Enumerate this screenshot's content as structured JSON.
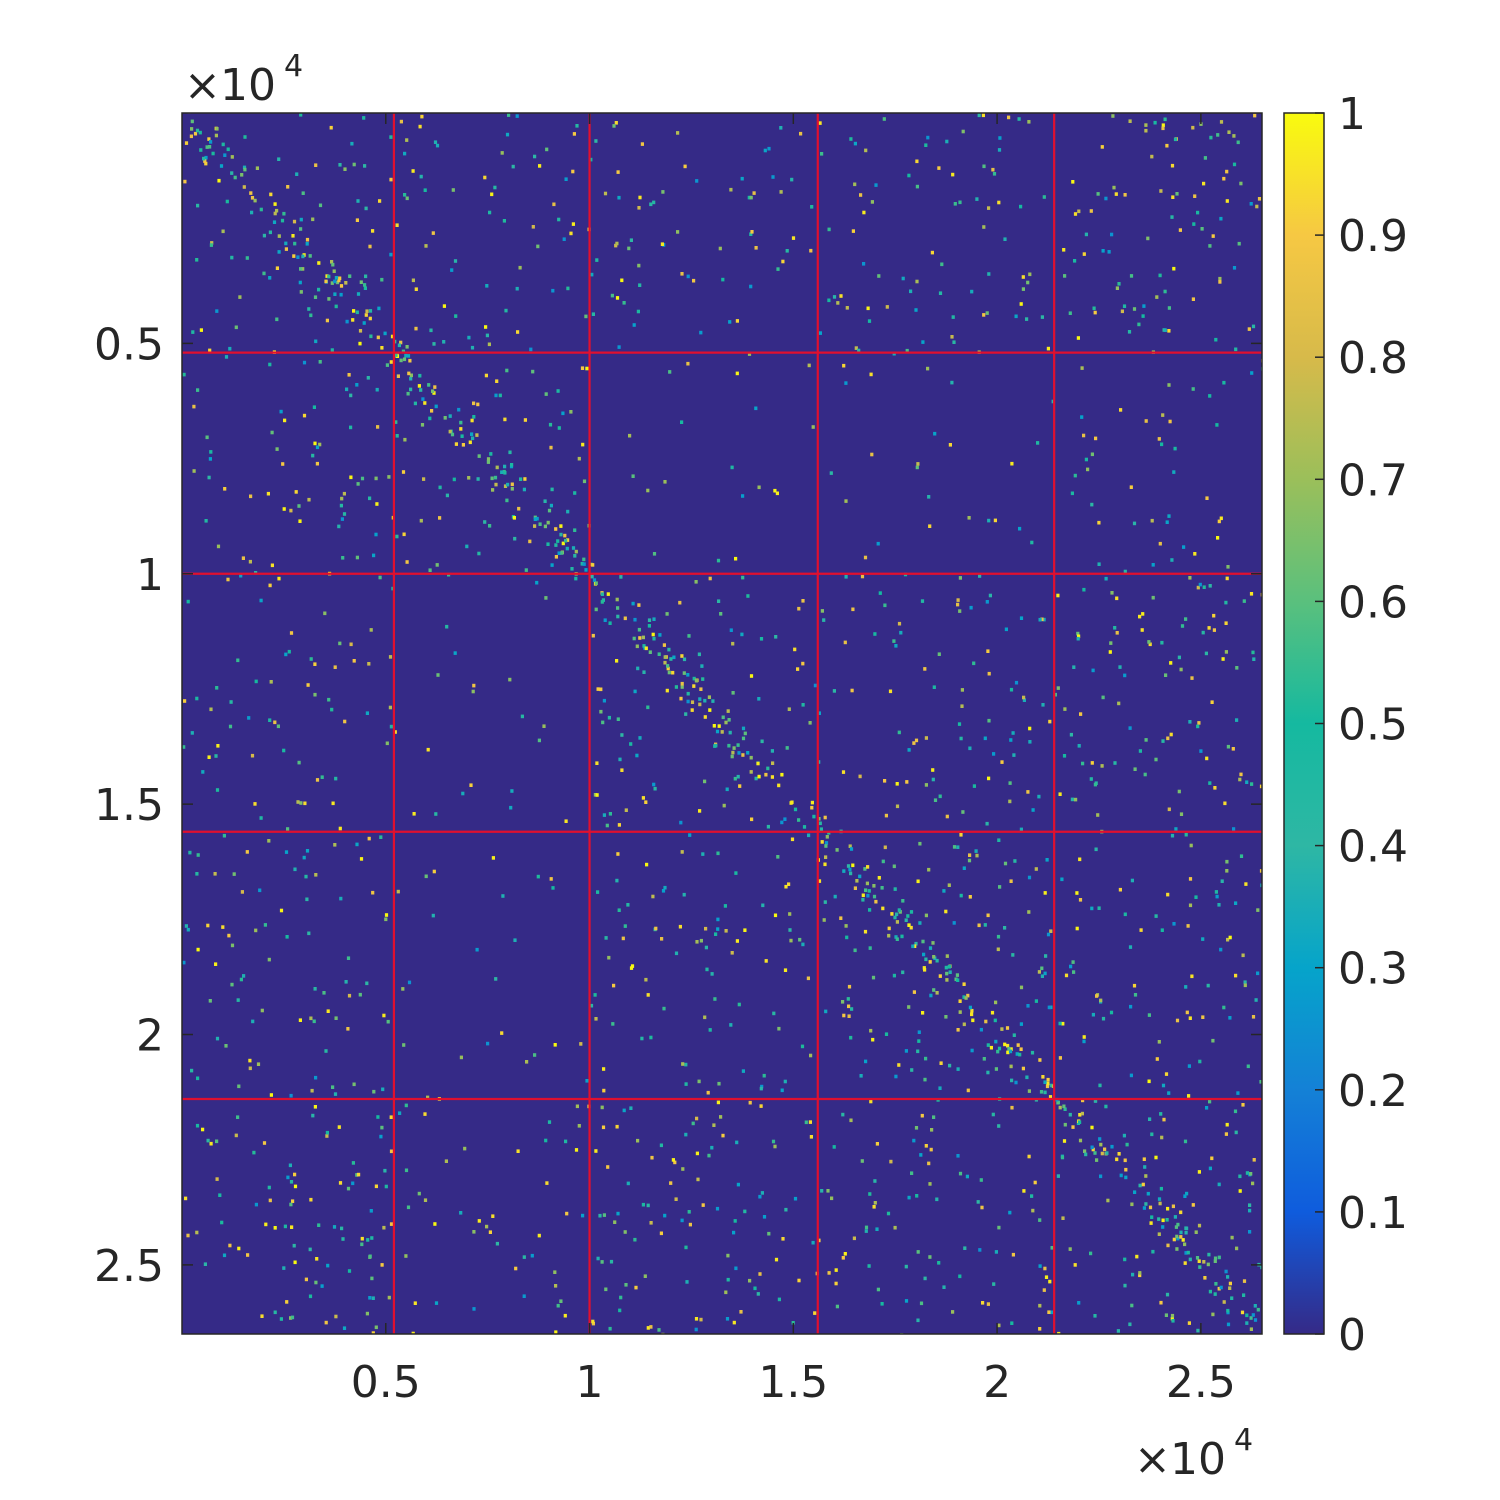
{
  "chart_data": {
    "type": "heatmap",
    "title": "",
    "xlabel": "",
    "ylabel": "",
    "xlim": [
      0,
      26500
    ],
    "ylim": [
      0,
      26500
    ],
    "y_axis_direction": "reversed",
    "x_ticks": [
      5000,
      10000,
      15000,
      20000,
      25000
    ],
    "x_tick_labels": [
      "0.5",
      "1",
      "1.5",
      "2",
      "2.5"
    ],
    "y_ticks": [
      5000,
      10000,
      15000,
      20000,
      25000
    ],
    "y_tick_labels": [
      "0.5",
      "1",
      "1.5",
      "2",
      "2.5"
    ],
    "x_exponent": {
      "base": "10",
      "power": "4"
    },
    "y_exponent": {
      "base": "10",
      "power": "4"
    },
    "block_boundaries": [
      5200,
      10000,
      15600,
      21400
    ],
    "boundary_color": "#e0102f",
    "value_range": [
      0,
      1
    ],
    "colormap": "parula",
    "colorbar_ticks": [
      0,
      0.1,
      0.2,
      0.3,
      0.4,
      0.5,
      0.6,
      0.7,
      0.8,
      0.9,
      1
    ],
    "colorbar_tick_labels": [
      "0",
      "0.1",
      "0.2",
      "0.3",
      "0.4",
      "0.5",
      "0.6",
      "0.7",
      "0.8",
      "0.9",
      "1"
    ],
    "colormap_stops": [
      {
        "v": 0.0,
        "color": "#352a87"
      },
      {
        "v": 0.1,
        "color": "#0f5cdd"
      },
      {
        "v": 0.2,
        "color": "#1481d6"
      },
      {
        "v": 0.3,
        "color": "#06a4ca"
      },
      {
        "v": 0.4,
        "color": "#2eb7a4"
      },
      {
        "v": 0.5,
        "color": "#15b9a0"
      },
      {
        "v": 0.6,
        "color": "#5ac07d"
      },
      {
        "v": 0.7,
        "color": "#9bbf5a"
      },
      {
        "v": 0.8,
        "color": "#d7ba4a"
      },
      {
        "v": 0.9,
        "color": "#f6c843"
      },
      {
        "v": 1.0,
        "color": "#f9fb0e"
      }
    ],
    "background_color": "#352a87",
    "block_density": [
      [
        0.07,
        0.03,
        0.025,
        0.03,
        0.04
      ],
      [
        0.03,
        0.08,
        0.008,
        0.01,
        0.02
      ],
      [
        0.025,
        0.008,
        0.07,
        0.03,
        0.04
      ],
      [
        0.03,
        0.01,
        0.03,
        0.08,
        0.035
      ],
      [
        0.04,
        0.02,
        0.04,
        0.035,
        0.08
      ]
    ],
    "diagonal_emphasis": "strong"
  }
}
